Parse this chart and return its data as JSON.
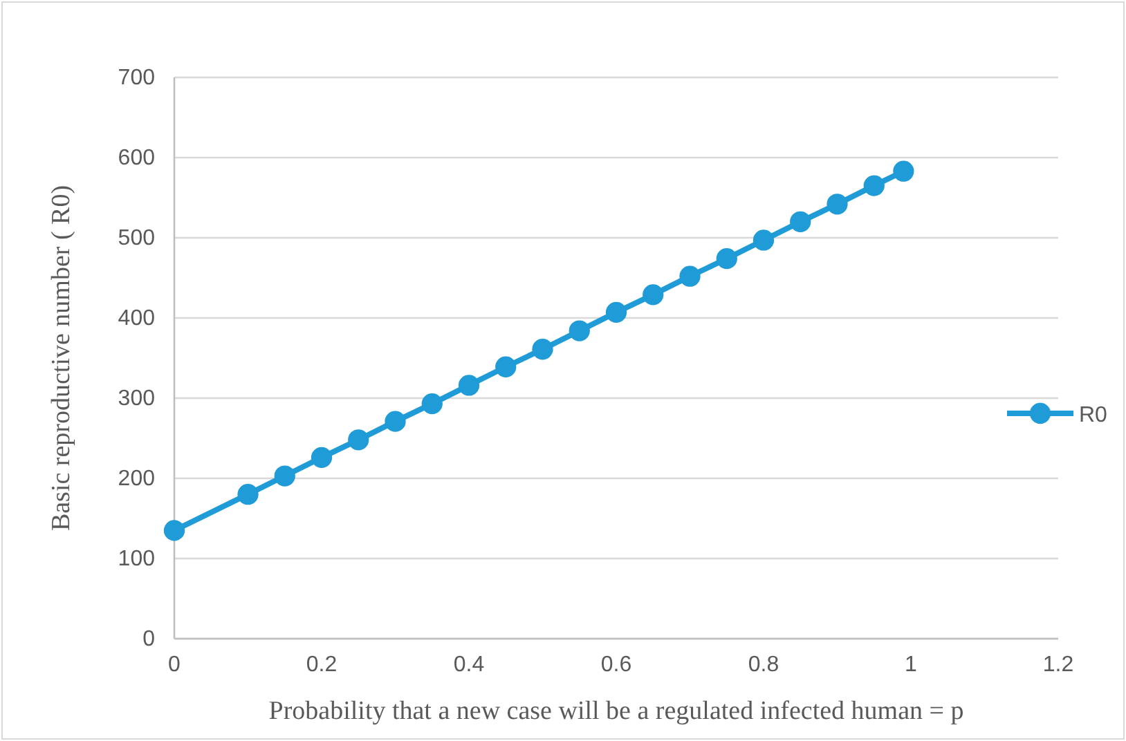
{
  "chart_data": {
    "type": "line",
    "xlabel": "Probability that a new case will be a regulated infected human = p",
    "ylabel": "Basic reproductive number ( R0)",
    "x": [
      0,
      0.1,
      0.15,
      0.2,
      0.25,
      0.3,
      0.35,
      0.4,
      0.45,
      0.5,
      0.55,
      0.6,
      0.65,
      0.7,
      0.75,
      0.8,
      0.85,
      0.9,
      0.95,
      0.99
    ],
    "series": [
      {
        "name": "R0",
        "color": "#1f9bd7",
        "values": [
          135,
          180,
          203,
          226,
          248,
          271,
          293,
          316,
          339,
          361,
          384,
          407,
          429,
          452,
          474,
          497,
          520,
          542,
          565,
          583
        ]
      }
    ],
    "xlim": [
      0,
      1.2
    ],
    "xticks": [
      0,
      0.2,
      0.4,
      0.6,
      0.8,
      1,
      1.2
    ],
    "ylim": [
      0,
      700
    ],
    "yticks": [
      0,
      100,
      200,
      300,
      400,
      500,
      600,
      700
    ],
    "grid": "y",
    "legend": "right",
    "marker": "circle",
    "line_style": "solid"
  }
}
